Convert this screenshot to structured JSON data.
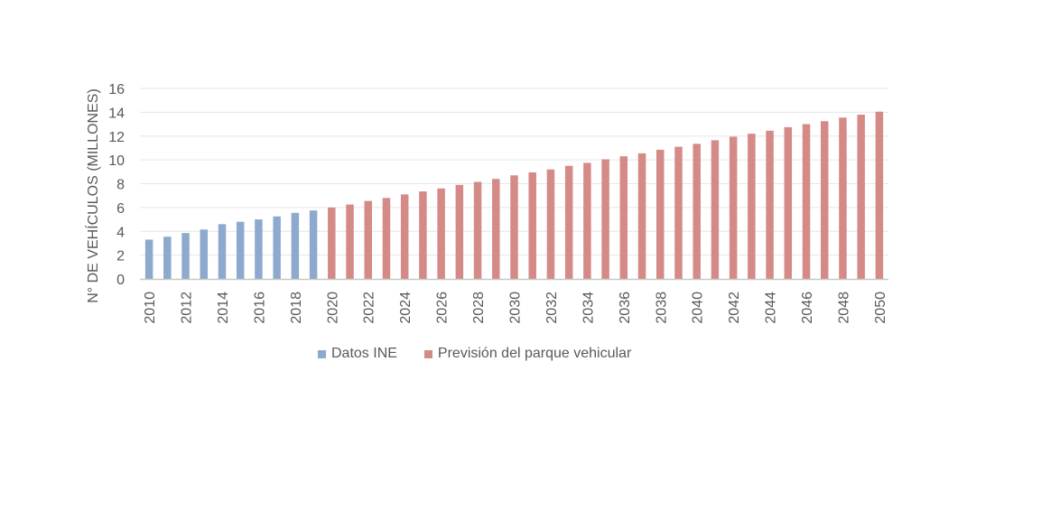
{
  "chart_data": {
    "type": "bar",
    "title": "",
    "xlabel": "",
    "ylabel": "N° DE VEHÍCULOS (MILLONES)",
    "ylim": [
      0,
      16
    ],
    "yticks": [
      0,
      2,
      4,
      6,
      8,
      10,
      12,
      14,
      16
    ],
    "grid": true,
    "legend_position": "bottom",
    "categories": [
      2010,
      2011,
      2012,
      2013,
      2014,
      2015,
      2016,
      2017,
      2018,
      2019,
      2020,
      2021,
      2022,
      2023,
      2024,
      2025,
      2026,
      2027,
      2028,
      2029,
      2030,
      2031,
      2032,
      2033,
      2034,
      2035,
      2036,
      2037,
      2038,
      2039,
      2040,
      2041,
      2042,
      2043,
      2044,
      2045,
      2046,
      2047,
      2048,
      2049,
      2050
    ],
    "tick_labels": [
      "2010",
      "2012",
      "2014",
      "2016",
      "2018",
      "2020",
      "2022",
      "2024",
      "2026",
      "2028",
      "2030",
      "2032",
      "2034",
      "2036",
      "2038",
      "2040",
      "2042",
      "2044",
      "2046",
      "2048",
      "2050"
    ],
    "series": [
      {
        "name": "Datos INE",
        "color": "#8EA9CE",
        "x": [
          2010,
          2011,
          2012,
          2013,
          2014,
          2015,
          2016,
          2017,
          2018,
          2019
        ],
        "values": [
          3.3,
          3.55,
          3.85,
          4.15,
          4.6,
          4.8,
          5.0,
          5.25,
          5.55,
          5.75
        ]
      },
      {
        "name": "Previsión del parque vehicular",
        "color": "#D48A86",
        "x": [
          2020,
          2021,
          2022,
          2023,
          2024,
          2025,
          2026,
          2027,
          2028,
          2029,
          2030,
          2031,
          2032,
          2033,
          2034,
          2035,
          2036,
          2037,
          2038,
          2039,
          2040,
          2041,
          2042,
          2043,
          2044,
          2045,
          2046,
          2047,
          2048,
          2049,
          2050
        ],
        "values": [
          6.0,
          6.25,
          6.55,
          6.8,
          7.1,
          7.35,
          7.6,
          7.9,
          8.15,
          8.4,
          8.7,
          8.95,
          9.2,
          9.5,
          9.75,
          10.05,
          10.3,
          10.55,
          10.85,
          11.1,
          11.35,
          11.65,
          11.95,
          12.2,
          12.45,
          12.75,
          13.0,
          13.25,
          13.55,
          13.8,
          14.05
        ]
      }
    ]
  }
}
